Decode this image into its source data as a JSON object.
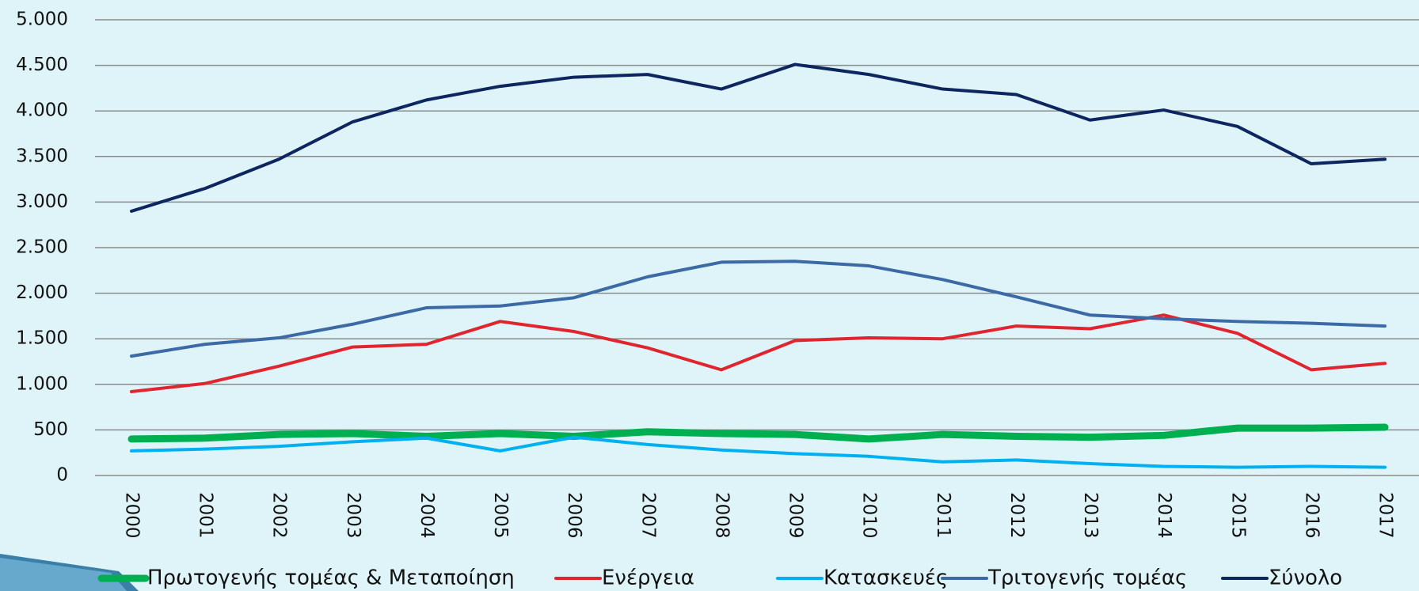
{
  "chart_data": {
    "type": "line",
    "categories": [
      "2000",
      "2001",
      "2002",
      "2003",
      "2004",
      "2005",
      "2006",
      "2007",
      "2008",
      "2009",
      "2010",
      "2011",
      "2012",
      "2013",
      "2014",
      "2015",
      "2016",
      "2017"
    ],
    "series": [
      {
        "name": "Πρωτογενής τομέας & Μεταποίηση",
        "color": "#00b050",
        "width": 9,
        "values": [
          400,
          410,
          450,
          460,
          430,
          460,
          430,
          480,
          460,
          450,
          400,
          450,
          430,
          420,
          440,
          520,
          520,
          530
        ]
      },
      {
        "name": "Ενέργεια",
        "color": "#e0252f",
        "width": 4,
        "values": [
          920,
          1010,
          1200,
          1410,
          1440,
          1690,
          1580,
          1400,
          1160,
          1480,
          1510,
          1500,
          1640,
          1610,
          1760,
          1560,
          1160,
          1230
        ]
      },
      {
        "name": "Κατασκευές",
        "color": "#00b0f0",
        "width": 4,
        "values": [
          270,
          290,
          320,
          370,
          410,
          270,
          420,
          340,
          280,
          240,
          210,
          150,
          170,
          130,
          100,
          90,
          100,
          90
        ]
      },
      {
        "name": "Τριτογενής τομέας",
        "color": "#3b6aa6",
        "width": 4,
        "values": [
          1310,
          1440,
          1510,
          1660,
          1840,
          1860,
          1950,
          2180,
          2340,
          2350,
          2300,
          2150,
          1960,
          1760,
          1720,
          1690,
          1670,
          1640
        ]
      },
      {
        "name": "Σύνολο",
        "color": "#0e2660",
        "width": 4,
        "values": [
          2900,
          3150,
          3470,
          3880,
          4120,
          4270,
          4370,
          4400,
          4240,
          4510,
          4400,
          4240,
          4180,
          3900,
          4010,
          3830,
          3420,
          3470
        ]
      }
    ],
    "ylim": [
      0,
      5000
    ],
    "yticks": [
      0,
      500,
      {
        "value": 1000,
        "label": "1.000"
      },
      {
        "value": 1500,
        "label": "1.500"
      },
      {
        "value": 2000,
        "label": "2.000"
      },
      {
        "value": 2500,
        "label": "2.500"
      },
      {
        "value": 3000,
        "label": "3.000"
      },
      {
        "value": 3500,
        "label": "3.500"
      },
      {
        "value": 4000,
        "label": "4.000"
      },
      {
        "value": 4500,
        "label": "4.500"
      },
      {
        "value": 5000,
        "label": "5.000"
      }
    ],
    "grid": true,
    "legend": "bottom"
  }
}
